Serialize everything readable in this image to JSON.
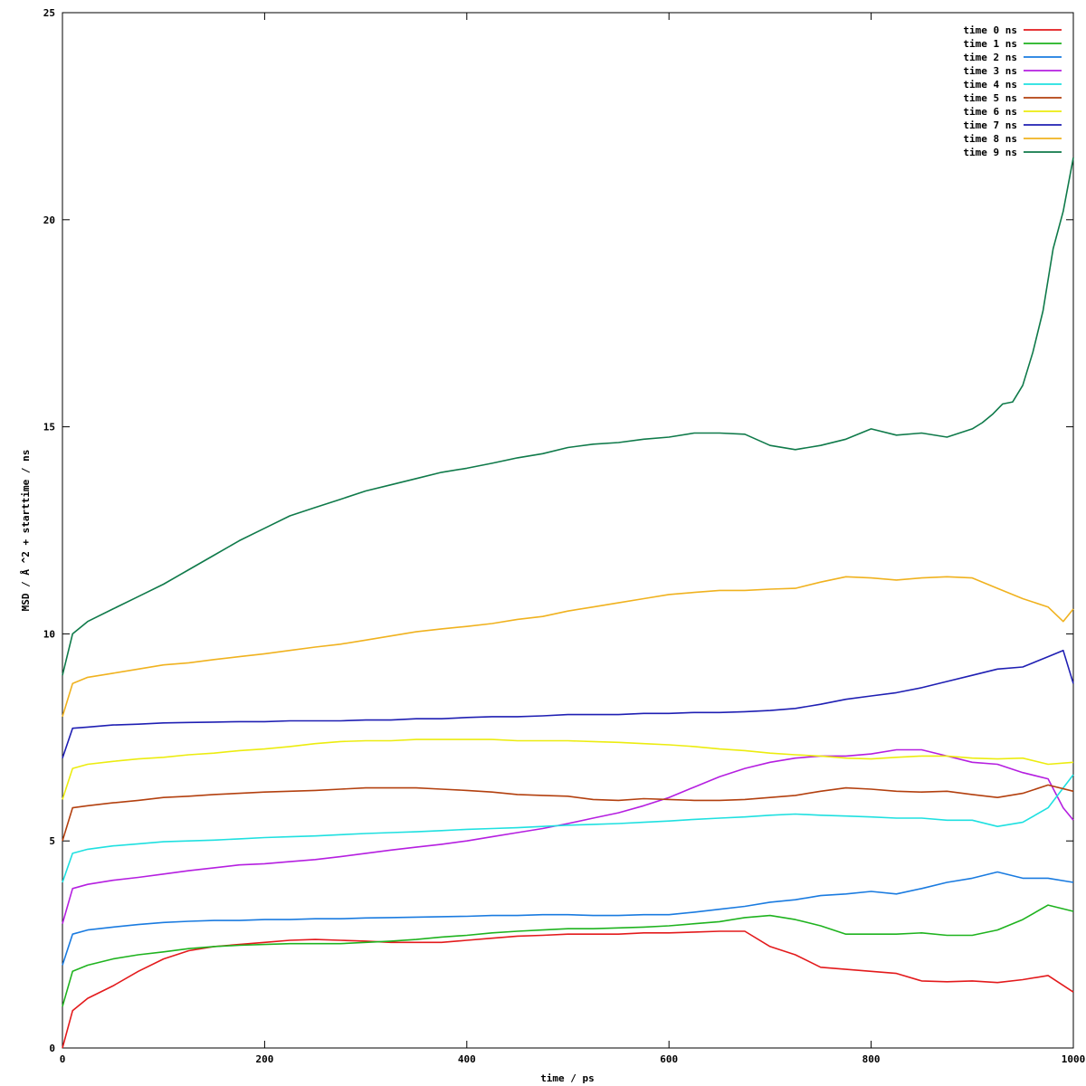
{
  "chart_data": {
    "type": "line",
    "title": "",
    "xlabel": "time / ps",
    "ylabel": "MSD / Å ^2 + starttime / ns",
    "xlim": [
      0,
      1000
    ],
    "ylim": [
      0,
      25
    ],
    "xticks": [
      0,
      200,
      400,
      600,
      800,
      1000
    ],
    "xtick_labels": [
      "0",
      "200",
      "400",
      "600",
      "800",
      "1000"
    ],
    "yticks": [
      0,
      5,
      10,
      15,
      20,
      25
    ],
    "ytick_labels": [
      "0",
      "5",
      "10",
      "15",
      "20",
      "25"
    ],
    "grid": false,
    "legend_position": "top-right",
    "series": [
      {
        "name": "time 0 ns",
        "color": "#e31a1c",
        "x": [
          0,
          10,
          25,
          50,
          75,
          100,
          125,
          150,
          175,
          200,
          225,
          250,
          275,
          300,
          325,
          350,
          375,
          400,
          425,
          450,
          475,
          500,
          525,
          550,
          575,
          600,
          625,
          650,
          675,
          700,
          725,
          750,
          775,
          800,
          825,
          850,
          875,
          900,
          925,
          950,
          975,
          1000
        ],
        "y": [
          0.0,
          0.9,
          1.2,
          1.5,
          1.85,
          2.15,
          2.35,
          2.45,
          2.5,
          2.55,
          2.6,
          2.62,
          2.6,
          2.58,
          2.55,
          2.55,
          2.55,
          2.6,
          2.65,
          2.7,
          2.72,
          2.75,
          2.75,
          2.75,
          2.78,
          2.78,
          2.8,
          2.82,
          2.82,
          2.45,
          2.25,
          1.95,
          1.9,
          1.85,
          1.8,
          1.62,
          1.6,
          1.62,
          1.58,
          1.65,
          1.75,
          1.35
        ]
      },
      {
        "name": "time 1 ns",
        "color": "#1fb31f",
        "x": [
          0,
          10,
          25,
          50,
          75,
          100,
          125,
          150,
          175,
          200,
          225,
          250,
          275,
          300,
          325,
          350,
          375,
          400,
          425,
          450,
          475,
          500,
          525,
          550,
          575,
          600,
          625,
          650,
          675,
          700,
          725,
          750,
          775,
          800,
          825,
          850,
          875,
          900,
          925,
          950,
          975,
          1000
        ],
        "y": [
          1.0,
          1.85,
          2.0,
          2.15,
          2.25,
          2.32,
          2.4,
          2.45,
          2.48,
          2.5,
          2.52,
          2.52,
          2.52,
          2.55,
          2.58,
          2.62,
          2.68,
          2.72,
          2.78,
          2.82,
          2.85,
          2.88,
          2.88,
          2.9,
          2.92,
          2.95,
          3.0,
          3.05,
          3.15,
          3.2,
          3.1,
          2.95,
          2.75,
          2.75,
          2.75,
          2.78,
          2.72,
          2.72,
          2.85,
          3.1,
          3.45,
          3.3
        ]
      },
      {
        "name": "time 2 ns",
        "color": "#1a7be0",
        "x": [
          0,
          10,
          25,
          50,
          75,
          100,
          125,
          150,
          175,
          200,
          225,
          250,
          275,
          300,
          325,
          350,
          375,
          400,
          425,
          450,
          475,
          500,
          525,
          550,
          575,
          600,
          625,
          650,
          675,
          700,
          725,
          750,
          775,
          800,
          825,
          850,
          875,
          900,
          925,
          950,
          975,
          1000
        ],
        "y": [
          2.0,
          2.75,
          2.85,
          2.92,
          2.98,
          3.03,
          3.06,
          3.08,
          3.08,
          3.1,
          3.1,
          3.12,
          3.12,
          3.14,
          3.15,
          3.16,
          3.17,
          3.18,
          3.2,
          3.2,
          3.22,
          3.22,
          3.2,
          3.2,
          3.22,
          3.22,
          3.28,
          3.35,
          3.42,
          3.52,
          3.58,
          3.68,
          3.72,
          3.78,
          3.72,
          3.85,
          4.0,
          4.1,
          4.25,
          4.1,
          4.1,
          4.0
        ]
      },
      {
        "name": "time 3 ns",
        "color": "#b51fe0",
        "x": [
          0,
          10,
          25,
          50,
          75,
          100,
          125,
          150,
          175,
          200,
          225,
          250,
          275,
          300,
          325,
          350,
          375,
          400,
          425,
          450,
          475,
          500,
          525,
          550,
          575,
          600,
          625,
          650,
          675,
          700,
          725,
          750,
          775,
          800,
          825,
          850,
          875,
          900,
          925,
          950,
          975,
          990,
          1000
        ],
        "y": [
          3.0,
          3.85,
          3.95,
          4.05,
          4.12,
          4.2,
          4.28,
          4.35,
          4.42,
          4.45,
          4.5,
          4.55,
          4.62,
          4.7,
          4.78,
          4.85,
          4.92,
          5.0,
          5.1,
          5.2,
          5.3,
          5.42,
          5.55,
          5.68,
          5.85,
          6.05,
          6.3,
          6.55,
          6.75,
          6.9,
          7.0,
          7.05,
          7.05,
          7.1,
          7.2,
          7.2,
          7.05,
          6.9,
          6.85,
          6.65,
          6.5,
          5.8,
          5.5
        ]
      },
      {
        "name": "time 4 ns",
        "color": "#1fe0e0",
        "x": [
          0,
          10,
          25,
          50,
          75,
          100,
          125,
          150,
          175,
          200,
          225,
          250,
          275,
          300,
          325,
          350,
          375,
          400,
          425,
          450,
          475,
          500,
          525,
          550,
          575,
          600,
          625,
          650,
          675,
          700,
          725,
          750,
          775,
          800,
          825,
          850,
          875,
          900,
          925,
          950,
          975,
          1000
        ],
        "y": [
          4.0,
          4.7,
          4.8,
          4.88,
          4.93,
          4.98,
          5.0,
          5.02,
          5.05,
          5.08,
          5.1,
          5.12,
          5.15,
          5.18,
          5.2,
          5.22,
          5.25,
          5.28,
          5.3,
          5.32,
          5.35,
          5.38,
          5.4,
          5.42,
          5.45,
          5.48,
          5.52,
          5.55,
          5.58,
          5.62,
          5.65,
          5.62,
          5.6,
          5.58,
          5.55,
          5.55,
          5.5,
          5.5,
          5.35,
          5.45,
          5.8,
          6.6
        ]
      },
      {
        "name": "time 5 ns",
        "color": "#b3400f",
        "x": [
          0,
          10,
          25,
          50,
          75,
          100,
          125,
          150,
          175,
          200,
          225,
          250,
          275,
          300,
          325,
          350,
          375,
          400,
          425,
          450,
          475,
          500,
          525,
          550,
          575,
          600,
          625,
          650,
          675,
          700,
          725,
          750,
          775,
          800,
          825,
          850,
          875,
          900,
          925,
          950,
          975,
          1000
        ],
        "y": [
          5.0,
          5.8,
          5.85,
          5.92,
          5.98,
          6.05,
          6.08,
          6.12,
          6.15,
          6.18,
          6.2,
          6.22,
          6.25,
          6.28,
          6.28,
          6.28,
          6.25,
          6.22,
          6.18,
          6.12,
          6.1,
          6.08,
          6.0,
          5.98,
          6.02,
          6.0,
          5.98,
          5.98,
          6.0,
          6.05,
          6.1,
          6.2,
          6.28,
          6.25,
          6.2,
          6.18,
          6.2,
          6.12,
          6.05,
          6.15,
          6.35,
          6.2
        ]
      },
      {
        "name": "time 6 ns",
        "color": "#ecec0f",
        "x": [
          0,
          10,
          25,
          50,
          75,
          100,
          125,
          150,
          175,
          200,
          225,
          250,
          275,
          300,
          325,
          350,
          375,
          400,
          425,
          450,
          475,
          500,
          525,
          550,
          575,
          600,
          625,
          650,
          675,
          700,
          725,
          750,
          775,
          800,
          825,
          850,
          875,
          900,
          925,
          950,
          975,
          1000
        ],
        "y": [
          6.0,
          6.75,
          6.85,
          6.92,
          6.98,
          7.02,
          7.08,
          7.12,
          7.18,
          7.22,
          7.28,
          7.35,
          7.4,
          7.42,
          7.42,
          7.45,
          7.45,
          7.45,
          7.45,
          7.42,
          7.42,
          7.42,
          7.4,
          7.38,
          7.35,
          7.32,
          7.28,
          7.22,
          7.18,
          7.12,
          7.08,
          7.05,
          7.0,
          6.98,
          7.02,
          7.05,
          7.05,
          7.0,
          6.98,
          7.0,
          6.85,
          6.9
        ]
      },
      {
        "name": "time 7 ns",
        "color": "#1f1fb3",
        "x": [
          0,
          10,
          25,
          50,
          75,
          100,
          125,
          150,
          175,
          200,
          225,
          250,
          275,
          300,
          325,
          350,
          375,
          400,
          425,
          450,
          475,
          500,
          525,
          550,
          575,
          600,
          625,
          650,
          675,
          700,
          725,
          750,
          775,
          800,
          825,
          850,
          875,
          900,
          925,
          950,
          975,
          990,
          1000
        ],
        "y": [
          7.0,
          7.72,
          7.75,
          7.8,
          7.82,
          7.85,
          7.86,
          7.87,
          7.88,
          7.88,
          7.9,
          7.9,
          7.9,
          7.92,
          7.92,
          7.95,
          7.95,
          7.98,
          8.0,
          8.0,
          8.02,
          8.05,
          8.05,
          8.05,
          8.08,
          8.08,
          8.1,
          8.1,
          8.12,
          8.15,
          8.2,
          8.3,
          8.42,
          8.5,
          8.58,
          8.7,
          8.85,
          9.0,
          9.15,
          9.2,
          9.45,
          9.6,
          8.8
        ]
      },
      {
        "name": "time 8 ns",
        "color": "#f0b21f",
        "x": [
          0,
          10,
          25,
          50,
          75,
          100,
          125,
          150,
          175,
          200,
          225,
          250,
          275,
          300,
          325,
          350,
          375,
          400,
          425,
          450,
          475,
          500,
          525,
          550,
          575,
          600,
          625,
          650,
          675,
          700,
          725,
          750,
          775,
          800,
          825,
          850,
          875,
          900,
          925,
          950,
          975,
          990,
          1000
        ],
        "y": [
          8.0,
          8.8,
          8.95,
          9.05,
          9.15,
          9.25,
          9.3,
          9.38,
          9.45,
          9.52,
          9.6,
          9.68,
          9.75,
          9.85,
          9.95,
          10.05,
          10.12,
          10.18,
          10.25,
          10.35,
          10.42,
          10.55,
          10.65,
          10.75,
          10.85,
          10.95,
          11.0,
          11.05,
          11.05,
          11.08,
          11.1,
          11.25,
          11.38,
          11.35,
          11.3,
          11.35,
          11.38,
          11.35,
          11.1,
          10.85,
          10.65,
          10.3,
          10.6
        ]
      },
      {
        "name": "time 9 ns",
        "color": "#0f7a4a",
        "x": [
          0,
          10,
          25,
          50,
          75,
          100,
          125,
          150,
          175,
          200,
          225,
          250,
          275,
          300,
          325,
          350,
          375,
          400,
          425,
          450,
          475,
          500,
          525,
          550,
          575,
          600,
          625,
          650,
          675,
          700,
          725,
          750,
          775,
          800,
          825,
          850,
          875,
          900,
          910,
          920,
          930,
          940,
          950,
          960,
          970,
          980,
          990,
          1000
        ],
        "y": [
          9.0,
          10.0,
          10.3,
          10.6,
          10.9,
          11.2,
          11.55,
          11.9,
          12.25,
          12.55,
          12.85,
          13.05,
          13.25,
          13.45,
          13.6,
          13.75,
          13.9,
          14.0,
          14.12,
          14.25,
          14.35,
          14.5,
          14.58,
          14.62,
          14.7,
          14.75,
          14.85,
          14.85,
          14.82,
          14.55,
          14.45,
          14.55,
          14.7,
          14.95,
          14.8,
          14.85,
          14.75,
          14.95,
          15.1,
          15.3,
          15.55,
          15.6,
          16.0,
          16.8,
          17.8,
          19.3,
          20.2,
          21.5
        ]
      }
    ]
  }
}
